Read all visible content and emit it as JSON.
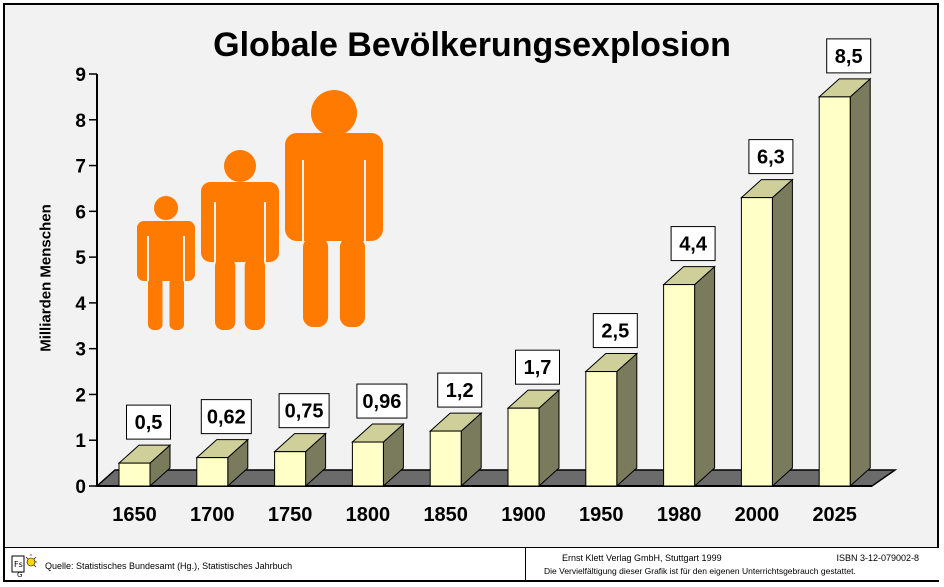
{
  "chart_data": {
    "type": "bar",
    "title": "Globale Bevölkerungsexplosion",
    "ylabel": "Milliarden Menschen",
    "xlabel": "",
    "categories": [
      "1650",
      "1700",
      "1750",
      "1800",
      "1850",
      "1900",
      "1950",
      "1980",
      "2000",
      "2025"
    ],
    "values": [
      0.5,
      0.62,
      0.75,
      0.96,
      1.2,
      1.7,
      2.5,
      4.4,
      6.3,
      8.5
    ],
    "value_labels": [
      "0,5",
      "0,62",
      "0,75",
      "0,96",
      "1,2",
      "1,7",
      "2,5",
      "4,4",
      "6,3",
      "8,5"
    ],
    "ylim": [
      0,
      9
    ],
    "yticks": [
      "0",
      "1",
      "2",
      "3",
      "4",
      "5",
      "6",
      "7",
      "8",
      "9"
    ],
    "grid": false,
    "colors": {
      "bar_front": "#ffffc8",
      "bar_side": "#7a7a5c",
      "bar_top": "#cfcf9a",
      "floor": "#6b6b6b",
      "figures": "#ff7a00"
    }
  },
  "illustration": {
    "icon": "people-growth-icon",
    "count": 3
  },
  "footer": {
    "source": "Quelle: Statistisches Bundesamt (Hg.), Statistisches Jahrbuch",
    "publisher": "Ernst Klett Verlag GmbH, Stuttgart 1999",
    "isbn": "ISBN 3-12-079002-8",
    "copyright": "Die Vervielfältigung dieser Grafik ist für den eigenen Unterrichtsgebrauch gestattet.",
    "logo_icon": "klett-logo-icon"
  }
}
